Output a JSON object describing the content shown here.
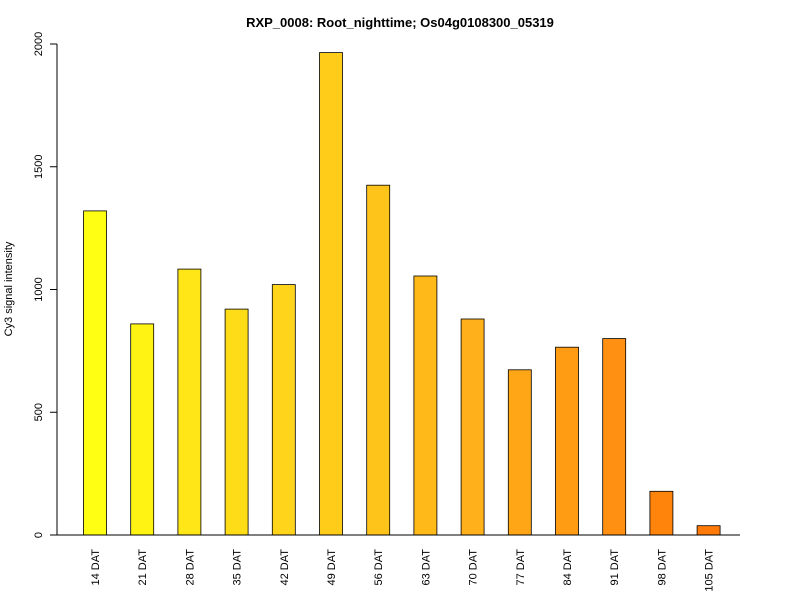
{
  "chart_data": {
    "type": "bar",
    "title": "RXP_0008: Root_nighttime; Os04g0108300_05319",
    "xlabel": "",
    "ylabel": "Cy3 signal intensity",
    "ylim": [
      0,
      2000
    ],
    "yticks": [
      0,
      500,
      1000,
      1500,
      2000
    ],
    "grid": false,
    "categories": [
      "14 DAT",
      "21 DAT",
      "28 DAT",
      "35 DAT",
      "42 DAT",
      "49 DAT",
      "56 DAT",
      "63 DAT",
      "70 DAT",
      "77 DAT",
      "84 DAT",
      "91 DAT",
      "98 DAT",
      "105 DAT"
    ],
    "values": [
      1320,
      860,
      1083,
      920,
      1020,
      1965,
      1425,
      1055,
      880,
      673,
      765,
      800,
      178,
      38
    ],
    "colors": [
      "#ffff14",
      "#fff314",
      "#ffe616",
      "#ffdc18",
      "#ffd41a",
      "#ffcc1a",
      "#ffc41a",
      "#ffba1a",
      "#ffb01a",
      "#ffa616",
      "#ff9c14",
      "#ff9012",
      "#ff840c",
      "#ff7a08"
    ]
  }
}
